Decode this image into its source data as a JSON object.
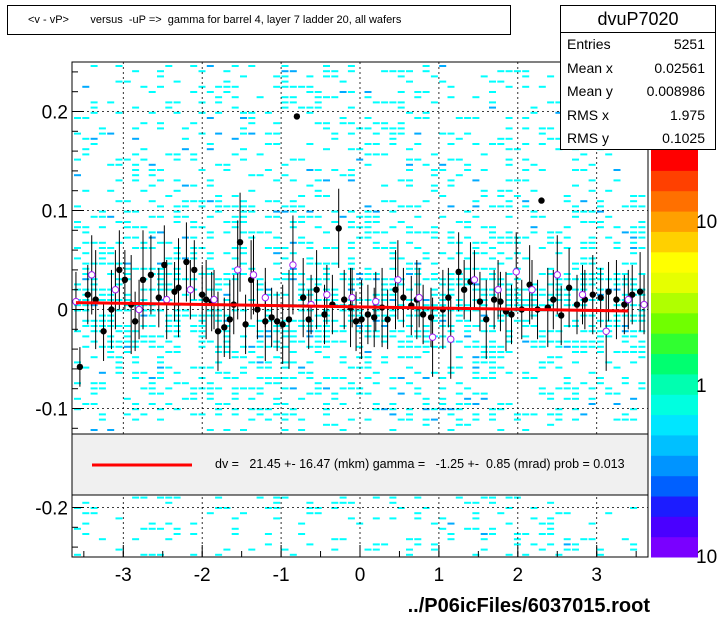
{
  "title": "<v - vP>       versus  -uP =>  gamma for barrel 4, layer 7 ladder 20, all wafers",
  "stats": {
    "name": "dvuP7020",
    "rows": [
      {
        "label": "Entries",
        "value": "5251"
      },
      {
        "label": "Mean x",
        "value": "0.02561"
      },
      {
        "label": "Mean y",
        "value": "0.008986"
      },
      {
        "label": "RMS x",
        "value": "1.975"
      },
      {
        "label": "RMS y",
        "value": "0.1025"
      }
    ]
  },
  "fit_legend": "dv =   21.45 +- 16.47 (mkm) gamma =   -1.25 +-  0.85 (mrad) prob = 0.013",
  "footer": "../P06icFiles/6037015.root",
  "colors": {
    "fit_line": "#ff0000",
    "hist_bins": "#00ffff",
    "open_markers": "#a020f0",
    "legend_bg": "#f0f0f0"
  },
  "chart_data": {
    "type": "scatter",
    "xlim": [
      -3.65,
      3.65
    ],
    "ylim": [
      -0.25,
      0.25
    ],
    "x_ticks": [
      "-3",
      "-2",
      "-1",
      "0",
      "1",
      "2",
      "3"
    ],
    "y_ticks": [
      "0.2",
      "0.1",
      "0",
      "-0.1",
      "-0.2"
    ],
    "z_scale": "log",
    "z_ticks": [
      "10",
      "1",
      "10"
    ],
    "grid": true,
    "fit_line": {
      "x": [
        -3.6,
        3.4
      ],
      "y": [
        0.007,
        -0.0015
      ]
    },
    "series": [
      {
        "marker": "filled-circle",
        "points": [
          [
            -3.55,
            -0.058,
            0.02
          ],
          [
            -3.45,
            0.015,
            0.03
          ],
          [
            -3.35,
            0.01,
            0.05
          ],
          [
            -3.25,
            -0.022,
            0.03
          ],
          [
            -3.15,
            0.0,
            0.04
          ],
          [
            -3.05,
            0.04,
            0.04
          ],
          [
            -2.98,
            0.03,
            0.03
          ],
          [
            -2.9,
            0.005,
            0.05
          ],
          [
            -2.85,
            -0.012,
            0.03
          ],
          [
            -2.75,
            0.03,
            0.05
          ],
          [
            -2.65,
            0.035,
            0.04
          ],
          [
            -2.55,
            0.012,
            0.03
          ],
          [
            -2.48,
            0.045,
            0.04
          ],
          [
            -2.35,
            0.018,
            0.03
          ],
          [
            -2.3,
            0.022,
            0.05
          ],
          [
            -2.2,
            0.048,
            0.04
          ],
          [
            -2.1,
            0.04,
            0.03
          ],
          [
            -2.0,
            0.015,
            0.03
          ],
          [
            -1.95,
            0.01,
            0.04
          ],
          [
            -1.88,
            0.008,
            0.03
          ],
          [
            -1.8,
            -0.022,
            0.04
          ],
          [
            -1.72,
            -0.018,
            0.03
          ],
          [
            -1.65,
            -0.01,
            0.04
          ],
          [
            -1.6,
            0.005,
            0.03
          ],
          [
            -1.52,
            0.068,
            0.05
          ],
          [
            -1.45,
            -0.015,
            0.03
          ],
          [
            -1.38,
            0.03,
            0.04
          ],
          [
            -1.3,
            0.0,
            0.03
          ],
          [
            -1.2,
            -0.012,
            0.04
          ],
          [
            -1.12,
            -0.008,
            0.03
          ],
          [
            -1.05,
            -0.012,
            0.03
          ],
          [
            -0.98,
            -0.015,
            0.04
          ],
          [
            -0.9,
            -0.01,
            0.05
          ],
          [
            -0.8,
            0.195,
            0.0
          ],
          [
            -0.72,
            0.012,
            0.04
          ],
          [
            -0.65,
            -0.01,
            0.03
          ],
          [
            -0.55,
            0.02,
            0.04
          ],
          [
            -0.45,
            -0.005,
            0.03
          ],
          [
            -0.35,
            0.005,
            0.03
          ],
          [
            -0.27,
            0.082,
            0.04
          ],
          [
            -0.2,
            0.01,
            0.03
          ],
          [
            -0.12,
            0.002,
            0.04
          ],
          [
            -0.05,
            -0.012,
            0.03
          ],
          [
            0.02,
            -0.01,
            0.04
          ],
          [
            0.1,
            -0.005,
            0.03
          ],
          [
            0.18,
            -0.008,
            0.03
          ],
          [
            0.28,
            0.002,
            0.04
          ],
          [
            0.35,
            -0.01,
            0.03
          ],
          [
            0.45,
            0.02,
            0.04
          ],
          [
            0.55,
            0.012,
            0.03
          ],
          [
            0.65,
            0.004,
            0.03
          ],
          [
            0.72,
            0.01,
            0.04
          ],
          [
            0.8,
            -0.005,
            0.03
          ],
          [
            0.9,
            -0.008,
            0.03
          ],
          [
            1.05,
            0.0,
            0.04
          ],
          [
            1.12,
            0.012,
            0.03
          ],
          [
            1.25,
            0.038,
            0.04
          ],
          [
            1.32,
            0.02,
            0.03
          ],
          [
            1.4,
            0.028,
            0.04
          ],
          [
            1.52,
            0.008,
            0.03
          ],
          [
            1.6,
            -0.01,
            0.04
          ],
          [
            1.7,
            0.01,
            0.03
          ],
          [
            1.78,
            0.008,
            0.03
          ],
          [
            1.85,
            -0.002,
            0.04
          ],
          [
            1.92,
            -0.005,
            0.03
          ],
          [
            2.05,
            0.0,
            0.03
          ],
          [
            2.15,
            0.025,
            0.04
          ],
          [
            2.25,
            0.0,
            0.03
          ],
          [
            2.3,
            0.11,
            0.0
          ],
          [
            2.38,
            0.002,
            0.04
          ],
          [
            2.45,
            0.01,
            0.03
          ],
          [
            2.55,
            -0.006,
            0.03
          ],
          [
            2.65,
            0.022,
            0.04
          ],
          [
            2.75,
            0.005,
            0.03
          ],
          [
            2.85,
            0.01,
            0.03
          ],
          [
            2.95,
            0.015,
            0.04
          ],
          [
            3.05,
            0.012,
            0.03
          ],
          [
            3.15,
            0.018,
            0.03
          ],
          [
            3.25,
            0.01,
            0.04
          ],
          [
            3.35,
            0.005,
            0.03
          ],
          [
            3.45,
            0.015,
            0.03
          ],
          [
            3.55,
            0.018,
            0.04
          ]
        ]
      },
      {
        "marker": "open-circle",
        "points": [
          [
            -3.6,
            0.008,
            0.03
          ],
          [
            -3.4,
            0.035,
            0.04
          ],
          [
            -3.1,
            0.02,
            0.04
          ],
          [
            -2.8,
            0.0,
            0.03
          ],
          [
            -2.45,
            0.01,
            0.04
          ],
          [
            -2.15,
            0.02,
            0.03
          ],
          [
            -1.85,
            0.01,
            0.03
          ],
          [
            -1.55,
            0.04,
            0.05
          ],
          [
            -1.35,
            0.035,
            0.04
          ],
          [
            -1.2,
            0.012,
            0.03
          ],
          [
            -0.85,
            0.045,
            0.05
          ],
          [
            -0.62,
            0.005,
            0.03
          ],
          [
            -0.42,
            0.015,
            0.03
          ],
          [
            -0.1,
            0.012,
            0.03
          ],
          [
            0.2,
            0.008,
            0.03
          ],
          [
            0.48,
            0.03,
            0.04
          ],
          [
            0.75,
            0.012,
            0.03
          ],
          [
            0.92,
            -0.028,
            0.04
          ],
          [
            1.15,
            -0.03,
            0.04
          ],
          [
            1.45,
            0.03,
            0.03
          ],
          [
            1.75,
            0.02,
            0.03
          ],
          [
            1.98,
            0.038,
            0.04
          ],
          [
            2.18,
            0.02,
            0.03
          ],
          [
            2.5,
            0.035,
            0.04
          ],
          [
            2.82,
            0.015,
            0.03
          ],
          [
            3.12,
            -0.022,
            0.04
          ],
          [
            3.4,
            0.01,
            0.03
          ],
          [
            3.6,
            0.005,
            0.03
          ]
        ]
      }
    ]
  }
}
